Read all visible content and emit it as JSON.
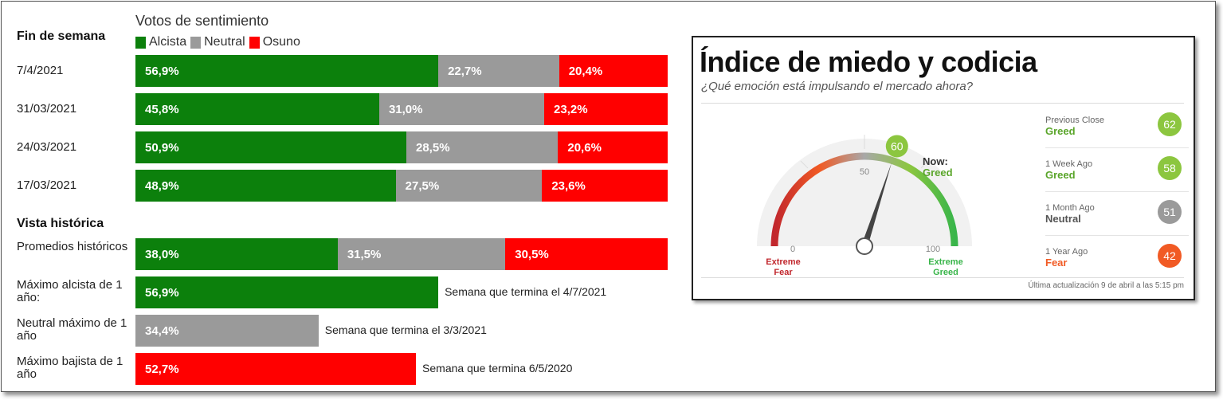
{
  "chart_data": [
    {
      "type": "bar",
      "title": "Votos de sentimiento",
      "legend": [
        "Alcista",
        "Neutral",
        "Osuno"
      ],
      "colors": {
        "alcista": "#0c800c",
        "neutral": "#9a9a9a",
        "osuno": "#ff0000"
      },
      "sections": [
        {
          "title": "Fin de semana",
          "rows": [
            {
              "label": "7/4/2021",
              "values": [
                56.9,
                22.7,
                20.4
              ],
              "texts": [
                "56,9%",
                "22,7%",
                "20,4%"
              ]
            },
            {
              "label": "31/03/2021",
              "values": [
                45.8,
                31.0,
                23.2
              ],
              "texts": [
                "45,8%",
                "31,0%",
                "23,2%"
              ]
            },
            {
              "label": "24/03/2021",
              "values": [
                50.9,
                28.5,
                20.6
              ],
              "texts": [
                "50,9%",
                "28,5%",
                "20,6%"
              ]
            },
            {
              "label": "17/03/2021",
              "values": [
                48.9,
                27.5,
                23.6
              ],
              "texts": [
                "48,9%",
                "27,5%",
                "23,6%"
              ]
            }
          ]
        },
        {
          "title": "Vista histórica",
          "rows": [
            {
              "label": "Promedios históricos",
              "values": [
                38.0,
                31.5,
                30.5
              ],
              "texts": [
                "38,0%",
                "31,5%",
                "30,5%"
              ]
            },
            {
              "label": "Máximo alcista de 1 año:",
              "kind": "alcista",
              "value": 56.9,
              "text": "56,9%",
              "note": "Semana que termina el 4/7/2021"
            },
            {
              "label": "Neutral máximo de 1 año",
              "kind": "neutral",
              "value": 34.4,
              "text": "34,4%",
              "note": "Semana que termina el 3/3/2021"
            },
            {
              "label": "Máximo bajista de 1 año",
              "kind": "osuno",
              "value": 52.7,
              "text": "52,7%",
              "note": "Semana que termina 6/5/2020"
            }
          ]
        }
      ]
    },
    {
      "type": "gauge",
      "title": "Índice de miedo y codicia",
      "subtitle": "¿Qué emoción está impulsando el mercado ahora?",
      "value": 60,
      "range": [
        0,
        100
      ],
      "ticks": [
        "0",
        "50",
        "100"
      ],
      "now_label": "Now:",
      "now_status": "Greed",
      "left_end_label": [
        "Extreme",
        "Fear"
      ],
      "right_end_label": [
        "Extreme",
        "Greed"
      ],
      "history": [
        {
          "period": "Previous Close",
          "label": "Greed",
          "value": 62,
          "color": "#8cc63f",
          "label_color": "#5aa52a"
        },
        {
          "period": "1 Week Ago",
          "label": "Greed",
          "value": 58,
          "color": "#8cc63f",
          "label_color": "#5aa52a"
        },
        {
          "period": "1 Month Ago",
          "label": "Neutral",
          "value": 51,
          "color": "#9a9a9a",
          "label_color": "#555555"
        },
        {
          "period": "1 Year Ago",
          "label": "Fear",
          "value": 42,
          "color": "#f15a24",
          "label_color": "#f15a24"
        }
      ],
      "updated": "Última actualización 9 de abril a las 5:15 pm"
    }
  ]
}
